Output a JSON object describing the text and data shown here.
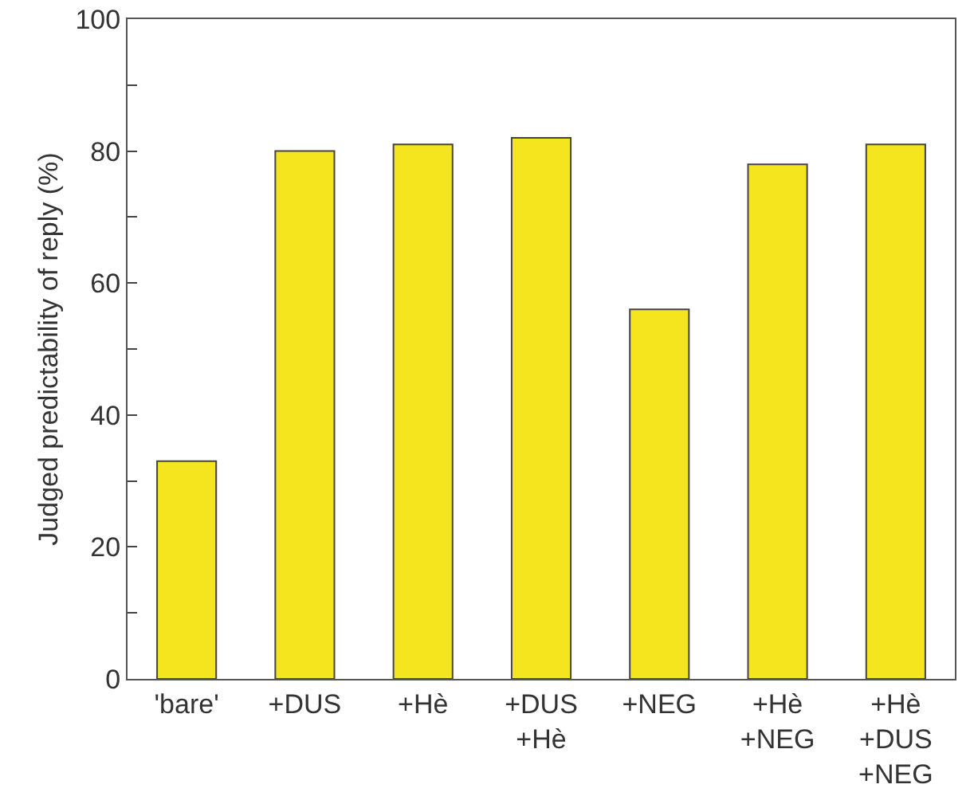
{
  "chart_data": {
    "type": "bar",
    "ylabel": "Judged predictability of reply (%)",
    "categories": [
      "'bare'",
      "+DUS",
      "+Hè",
      "+DUS\n+Hè",
      "+NEG",
      "+Hè\n+NEG",
      "+Hè\n+DUS\n+NEG"
    ],
    "values": [
      33,
      80,
      81,
      82,
      56,
      78,
      81
    ],
    "color": "#f5e51e",
    "ylim": [
      0,
      100
    ],
    "yticks": [
      0,
      {
        "value": 10,
        "label": null
      },
      20,
      {
        "value": 30,
        "label": null
      },
      40,
      {
        "value": 50,
        "label": null
      },
      60,
      {
        "value": 70,
        "label": null
      },
      80,
      {
        "value": 90,
        "label": null
      },
      100
    ],
    "grid": false
  }
}
